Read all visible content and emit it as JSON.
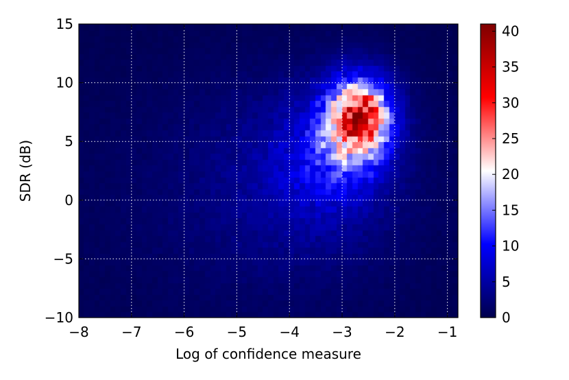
{
  "chart_data": {
    "type": "heatmap",
    "title": "",
    "xlabel": "Log of confidence measure",
    "ylabel": "SDR (dB)",
    "xlim": [
      -8,
      -0.8
    ],
    "ylim": [
      -10,
      15
    ],
    "x_ticks": [
      -8,
      -7,
      -6,
      -5,
      -4,
      -3,
      -2,
      -1
    ],
    "x_tick_labels": [
      "−8",
      "−7",
      "−6",
      "−5",
      "−4",
      "−3",
      "−2",
      "−1"
    ],
    "y_ticks": [
      -10,
      -5,
      0,
      5,
      10,
      15
    ],
    "y_tick_labels": [
      "−10",
      "−5",
      "0",
      "5",
      "10",
      "15"
    ],
    "grid": true,
    "colorbar": {
      "min": 0,
      "max": 41,
      "ticks": [
        0,
        5,
        10,
        15,
        20,
        25,
        30,
        35,
        40
      ],
      "tick_labels": [
        "0",
        "5",
        "10",
        "15",
        "20",
        "25",
        "30",
        "35",
        "40"
      ],
      "colors": [
        "#00004c",
        "#0000ff",
        "#ffffff",
        "#ff0000",
        "#7f0000"
      ]
    },
    "density_components": [
      {
        "x": -2.7,
        "y": 6.8,
        "sx": 0.45,
        "sy": 2.6,
        "peak": 23
      },
      {
        "x": -2.6,
        "y": 7.5,
        "sx": 0.3,
        "sy": 1.6,
        "peak": 10
      },
      {
        "x": -3.3,
        "y": 3.5,
        "sx": 0.7,
        "sy": 3.5,
        "peak": 6
      },
      {
        "x": -3.8,
        "y": 2.0,
        "sx": 1.4,
        "sy": 6.0,
        "peak": 3
      },
      {
        "x": -5.0,
        "y": 0.0,
        "sx": 2.5,
        "sy": 8.0,
        "peak": 1.2
      }
    ]
  }
}
